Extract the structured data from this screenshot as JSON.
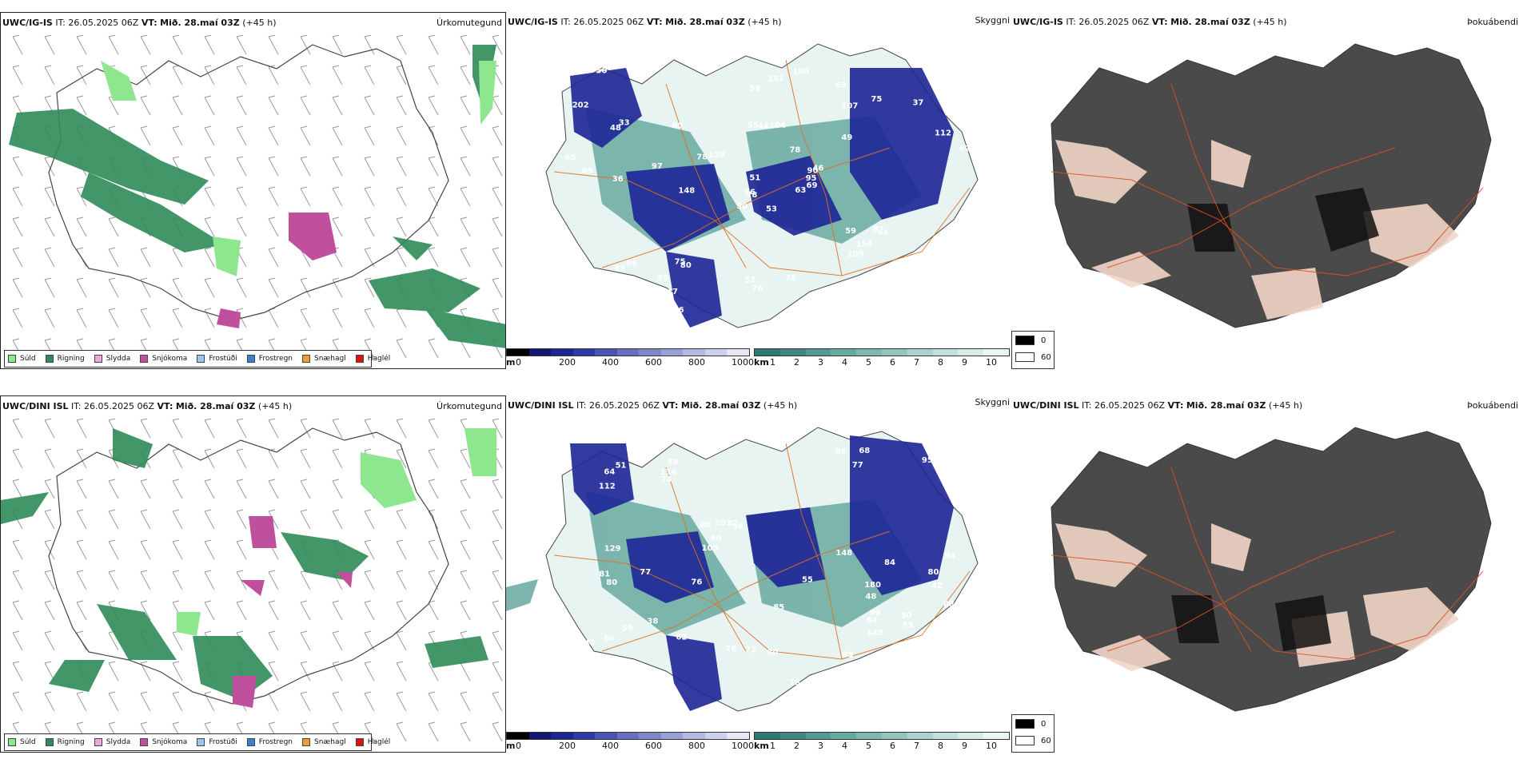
{
  "rows": [
    {
      "model": "UWC/IG-IS",
      "it_label": "IT:",
      "it_value": "26.05.2025 06Z",
      "vt_label": "VT:",
      "vt_value": "Mið. 28.maí 03Z",
      "lead": "(+45 h)",
      "precip_title": "Úrkomutegund",
      "cloud_title": "Skyggni",
      "fog_title": "Þokuábendi",
      "cloud_labels": [
        "53",
        "48",
        "78",
        "72",
        "90",
        "80",
        "63",
        "104",
        "107",
        "63",
        "69",
        "118",
        "36",
        "101",
        "90",
        "49",
        "50",
        "55",
        "78",
        "86",
        "138",
        "22",
        "147",
        "44",
        "46",
        "44",
        "33",
        "58",
        "69",
        "59",
        "62",
        "66",
        "52",
        "51",
        "80",
        "75",
        "75",
        "67",
        "62",
        "97",
        "100",
        "78",
        "97",
        "109",
        "66",
        "65",
        "95",
        "141",
        "76",
        "69",
        "83",
        "112",
        "202",
        "154",
        "168",
        "65",
        "127",
        "50",
        "75",
        "37",
        "151",
        "148"
      ]
    },
    {
      "model": "UWC/DINI ISL",
      "it_label": "IT:",
      "it_value": "26.05.2025 06Z",
      "vt_label": "VT:",
      "vt_value": "Mið. 28.maí 03Z",
      "lead": "(+45 h)",
      "precip_title": "Úrkomutegund",
      "cloud_title": "Skyggni",
      "fog_title": "Þokuábendi",
      "cloud_labels": [
        "48",
        "42",
        "59",
        "59",
        "58",
        "77",
        "66",
        "77",
        "80",
        "58",
        "112",
        "81",
        "64",
        "44",
        "76",
        "94",
        "85",
        "55",
        "82",
        "38",
        "38",
        "95",
        "105",
        "88",
        "86",
        "136",
        "99",
        "80",
        "74",
        "84",
        "78",
        "85",
        "90",
        "76",
        "80",
        "65",
        "64",
        "77",
        "80",
        "59",
        "52",
        "68",
        "55",
        "72",
        "50",
        "62",
        "42",
        "51",
        "148",
        "129",
        "121",
        "201",
        "83",
        "180",
        "145",
        "80"
      ]
    }
  ],
  "precip_legend": [
    {
      "label": "Súld",
      "color": "#8ee68e"
    },
    {
      "label": "Rigning",
      "color": "#2e8b57"
    },
    {
      "label": "Slydda",
      "color": "#f0a8d8"
    },
    {
      "label": "Snjókoma",
      "color": "#c0509e"
    },
    {
      "label": "Frostúði",
      "color": "#9cc8f0"
    },
    {
      "label": "Frostregn",
      "color": "#3a7fd0"
    },
    {
      "label": "Snæhagl",
      "color": "#f0a020"
    },
    {
      "label": "Haglél",
      "color": "#e01010"
    }
  ],
  "cloudbase_bar": {
    "unit": "m",
    "ticks": [
      "0",
      "200",
      "400",
      "600",
      "800",
      "1000"
    ],
    "colors": [
      "#000000",
      "#151573",
      "#1d2596",
      "#2c3aa8",
      "#4a54b4",
      "#6670c0",
      "#8088cc",
      "#9aa0d8",
      "#b4b8e4",
      "#cdd0ee",
      "#e6e8f6"
    ]
  },
  "visibility_bar": {
    "unit": "km",
    "ticks": [
      "1",
      "2",
      "3",
      "4",
      "5",
      "6",
      "7",
      "8",
      "9",
      "10"
    ],
    "colors": [
      "#2d7a70",
      "#3f8a80",
      "#539a90",
      "#68a9a0",
      "#7eb8b0",
      "#94c6bf",
      "#aad4ce",
      "#c0e1dc",
      "#d6edea",
      "#ecf7f5"
    ]
  },
  "fog_legend": [
    {
      "label": "0",
      "color": "#000000"
    },
    {
      "label": "60",
      "color": "#ffffff"
    }
  ]
}
